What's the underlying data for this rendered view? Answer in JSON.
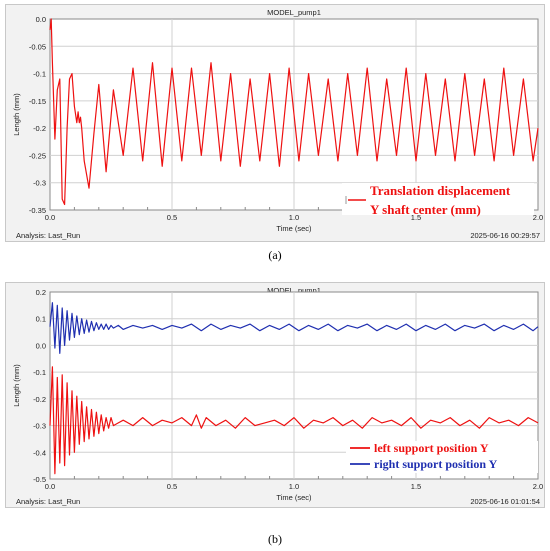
{
  "panels": [
    {
      "sublabel": "(a)",
      "analysis": "Analysis:  Last_Run",
      "timestamp": "2025-06-16 00:29:57",
      "legend_style": "serif-bold",
      "chart_data": {
        "type": "line",
        "title": "MODEL_pump1",
        "xlabel": "Time (sec)",
        "ylabel": "Length (mm)",
        "xlim": [
          0.0,
          2.0
        ],
        "ylim": [
          -0.35,
          0.0
        ],
        "xticks": [
          0.0,
          0.5,
          1.0,
          1.5,
          2.0
        ],
        "xtick_labels": [
          "0.0",
          "0.5",
          "1.0",
          "1.5",
          "2.0"
        ],
        "yticks": [
          0.0,
          -0.05,
          -0.1,
          -0.15,
          -0.2,
          -0.25,
          -0.3,
          -0.35
        ],
        "ytick_labels": [
          "0.0",
          "-0.05",
          "-0.1",
          "-0.15",
          "-0.2",
          "-0.25",
          "-0.3",
          "-0.35"
        ],
        "grid": true,
        "legend_position": "bottom-right",
        "series": [
          {
            "name": "Translation displacement\nY shaft center (mm)",
            "color": "#ee1111",
            "x": [
              0.0,
              0.005,
              0.01,
              0.02,
              0.03,
              0.04,
              0.05,
              0.06,
              0.07,
              0.08,
              0.09,
              0.1,
              0.11,
              0.115,
              0.12,
              0.125,
              0.13,
              0.14,
              0.16,
              0.18,
              0.2,
              0.23,
              0.26,
              0.3,
              0.34,
              0.38,
              0.42,
              0.46,
              0.5,
              0.54,
              0.58,
              0.62,
              0.66,
              0.7,
              0.74,
              0.78,
              0.82,
              0.86,
              0.9,
              0.94,
              0.98,
              1.02,
              1.06,
              1.1,
              1.14,
              1.18,
              1.22,
              1.26,
              1.3,
              1.34,
              1.38,
              1.42,
              1.46,
              1.5,
              1.54,
              1.58,
              1.62,
              1.66,
              1.7,
              1.74,
              1.78,
              1.82,
              1.86,
              1.9,
              1.94,
              1.98,
              2.0
            ],
            "y": [
              -0.02,
              0.0,
              -0.08,
              -0.22,
              -0.13,
              -0.11,
              -0.33,
              -0.34,
              -0.2,
              -0.11,
              -0.1,
              -0.16,
              -0.19,
              -0.17,
              -0.19,
              -0.18,
              -0.2,
              -0.26,
              -0.31,
              -0.21,
              -0.12,
              -0.28,
              -0.13,
              -0.25,
              -0.09,
              -0.26,
              -0.08,
              -0.27,
              -0.09,
              -0.26,
              -0.09,
              -0.25,
              -0.08,
              -0.26,
              -0.1,
              -0.27,
              -0.11,
              -0.26,
              -0.1,
              -0.27,
              -0.09,
              -0.26,
              -0.1,
              -0.25,
              -0.11,
              -0.26,
              -0.1,
              -0.25,
              -0.09,
              -0.26,
              -0.11,
              -0.25,
              -0.09,
              -0.26,
              -0.1,
              -0.25,
              -0.11,
              -0.26,
              -0.1,
              -0.25,
              -0.11,
              -0.26,
              -0.09,
              -0.25,
              -0.11,
              -0.26,
              -0.2
            ]
          }
        ]
      }
    },
    {
      "sublabel": "(b)",
      "analysis": "Analysis:  Last_Run",
      "timestamp": "2025-06-16 01:01:54",
      "legend_style": "serif-bold",
      "chart_data": {
        "type": "line",
        "title": "MODEL_pump1",
        "xlabel": "Time (sec)",
        "ylabel": "Length (mm)",
        "xlim": [
          0.0,
          2.0
        ],
        "ylim": [
          -0.5,
          0.2
        ],
        "xticks": [
          0.0,
          0.5,
          1.0,
          1.5,
          2.0
        ],
        "xtick_labels": [
          "0.0",
          "0.5",
          "1.0",
          "1.5",
          "2.0"
        ],
        "yticks": [
          0.2,
          0.1,
          0.0,
          -0.1,
          -0.2,
          -0.3,
          -0.4,
          -0.5
        ],
        "ytick_labels": [
          "0.2",
          "0.1",
          "0.0",
          "-0.1",
          "-0.2",
          "-0.3",
          "-0.4",
          "-0.5"
        ],
        "grid": true,
        "legend_position": "bottom-right",
        "series": [
          {
            "name": "left support position Y",
            "color": "#ee1111",
            "x": [
              0.0,
              0.01,
              0.02,
              0.03,
              0.04,
              0.05,
              0.06,
              0.07,
              0.08,
              0.09,
              0.1,
              0.11,
              0.12,
              0.13,
              0.14,
              0.15,
              0.16,
              0.17,
              0.18,
              0.19,
              0.2,
              0.21,
              0.22,
              0.23,
              0.24,
              0.25,
              0.26,
              0.28,
              0.3,
              0.34,
              0.38,
              0.42,
              0.46,
              0.5,
              0.54,
              0.58,
              0.6,
              0.62,
              0.64,
              0.68,
              0.72,
              0.76,
              0.8,
              0.84,
              0.88,
              0.92,
              0.96,
              1.0,
              1.04,
              1.08,
              1.12,
              1.16,
              1.2,
              1.24,
              1.28,
              1.32,
              1.36,
              1.4,
              1.44,
              1.48,
              1.52,
              1.56,
              1.6,
              1.64,
              1.68,
              1.72,
              1.76,
              1.8,
              1.84,
              1.88,
              1.92,
              1.96,
              2.0
            ],
            "y": [
              -0.3,
              -0.08,
              -0.48,
              -0.12,
              -0.44,
              -0.11,
              -0.45,
              -0.14,
              -0.41,
              -0.17,
              -0.4,
              -0.19,
              -0.37,
              -0.21,
              -0.36,
              -0.23,
              -0.35,
              -0.24,
              -0.34,
              -0.25,
              -0.33,
              -0.26,
              -0.32,
              -0.27,
              -0.31,
              -0.27,
              -0.3,
              -0.29,
              -0.28,
              -0.3,
              -0.27,
              -0.3,
              -0.28,
              -0.29,
              -0.27,
              -0.3,
              -0.26,
              -0.31,
              -0.27,
              -0.3,
              -0.28,
              -0.31,
              -0.27,
              -0.3,
              -0.29,
              -0.28,
              -0.3,
              -0.27,
              -0.31,
              -0.28,
              -0.29,
              -0.27,
              -0.3,
              -0.28,
              -0.31,
              -0.27,
              -0.29,
              -0.28,
              -0.3,
              -0.27,
              -0.31,
              -0.28,
              -0.29,
              -0.27,
              -0.3,
              -0.28,
              -0.31,
              -0.27,
              -0.29,
              -0.28,
              -0.3,
              -0.27,
              -0.29
            ]
          },
          {
            "name": "right support position Y",
            "color": "#1f2fb0",
            "x": [
              0.0,
              0.01,
              0.02,
              0.03,
              0.04,
              0.05,
              0.06,
              0.07,
              0.08,
              0.09,
              0.1,
              0.11,
              0.12,
              0.13,
              0.14,
              0.15,
              0.16,
              0.17,
              0.18,
              0.19,
              0.2,
              0.21,
              0.22,
              0.23,
              0.24,
              0.25,
              0.26,
              0.28,
              0.3,
              0.34,
              0.38,
              0.42,
              0.46,
              0.5,
              0.54,
              0.58,
              0.62,
              0.66,
              0.7,
              0.74,
              0.78,
              0.82,
              0.86,
              0.9,
              0.94,
              0.98,
              1.02,
              1.06,
              1.1,
              1.14,
              1.18,
              1.22,
              1.26,
              1.3,
              1.34,
              1.38,
              1.42,
              1.46,
              1.5,
              1.54,
              1.58,
              1.62,
              1.66,
              1.7,
              1.74,
              1.78,
              1.82,
              1.86,
              1.9,
              1.94,
              1.98,
              2.0
            ],
            "y": [
              0.07,
              0.16,
              -0.01,
              0.15,
              -0.03,
              0.14,
              0.0,
              0.13,
              0.02,
              0.12,
              0.03,
              0.11,
              0.04,
              0.1,
              0.045,
              0.095,
              0.05,
              0.09,
              0.055,
              0.085,
              0.06,
              0.08,
              0.06,
              0.08,
              0.06,
              0.075,
              0.065,
              0.075,
              0.06,
              0.075,
              0.065,
              0.075,
              0.06,
              0.075,
              0.065,
              0.08,
              0.055,
              0.08,
              0.06,
              0.075,
              0.065,
              0.08,
              0.055,
              0.075,
              0.06,
              0.08,
              0.055,
              0.075,
              0.06,
              0.08,
              0.055,
              0.075,
              0.065,
              0.08,
              0.055,
              0.075,
              0.06,
              0.08,
              0.055,
              0.075,
              0.06,
              0.08,
              0.055,
              0.075,
              0.065,
              0.08,
              0.055,
              0.075,
              0.06,
              0.08,
              0.055,
              0.07
            ]
          }
        ]
      }
    }
  ]
}
